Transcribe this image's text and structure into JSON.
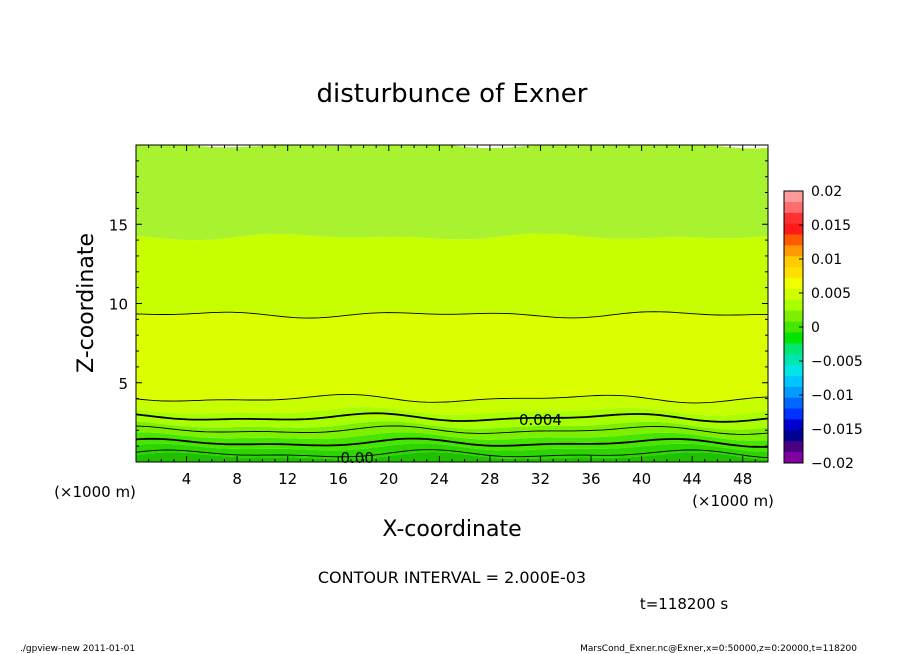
{
  "chart_data": {
    "type": "contour",
    "title": "disturbunce of Exner",
    "xlabel": "X-coordinate",
    "ylabel": "Z-coordinate",
    "x_unit_left": "(×1000 m)",
    "x_unit_right": "(×1000 m)",
    "xlim": [
      0,
      50
    ],
    "ylim": [
      0,
      20
    ],
    "x_ticks": [
      4,
      8,
      12,
      16,
      20,
      24,
      28,
      32,
      36,
      40,
      44,
      48
    ],
    "y_ticks": [
      5,
      10,
      15
    ],
    "contour_labels": [
      {
        "text": "0.004",
        "x": 32,
        "z": 2.7
      },
      {
        "text": "0.00",
        "x": 17.5,
        "z": 0.3
      }
    ],
    "colorbar": {
      "ticks": [
        "0.02",
        "0.015",
        "0.01",
        "0.005",
        "0",
        "−0.005",
        "−0.01",
        "−0.015",
        "−0.02"
      ],
      "range": [
        -0.02,
        0.02
      ],
      "colors": [
        "#ff9b9b",
        "#ff6e6e",
        "#ff3030",
        "#ff1a1a",
        "#ff5a00",
        "#ff9a00",
        "#ffcc00",
        "#ffe000",
        "#f0ff00",
        "#d0ff00",
        "#a8ff00",
        "#7cf000",
        "#46e600",
        "#00e400",
        "#00e870",
        "#00e6b0",
        "#00e6e6",
        "#00c6ff",
        "#009cff",
        "#0066ff",
        "#0033ff",
        "#0000d0",
        "#000090",
        "#4a0080",
        "#8000a0"
      ]
    },
    "bands": [
      {
        "from": 0,
        "to": 0.35,
        "color": "#1ec000"
      },
      {
        "from": 0.35,
        "to": 0.9,
        "color": "#2cd400"
      },
      {
        "from": 0.9,
        "to": 1.6,
        "color": "#46e600"
      },
      {
        "from": 1.6,
        "to": 2.3,
        "color": "#7cf000"
      },
      {
        "from": 2.3,
        "to": 3.2,
        "color": "#a8ff00"
      },
      {
        "from": 3.2,
        "to": 4.0,
        "color": "#c8ff00"
      },
      {
        "from": 4.0,
        "to": 9.3,
        "color": "#dcff00"
      },
      {
        "from": 9.3,
        "to": 14.2,
        "color": "#c8ff00"
      },
      {
        "from": 14.2,
        "to": 20,
        "color": "#a8f230"
      }
    ],
    "contour_lines": [
      0.5,
      1.2,
      2.0,
      2.8,
      4.0,
      9.3
    ],
    "contour_interval": "CONTOUR INTERVAL = 2.000E-03",
    "time_label": "t=118200 s"
  },
  "footer": {
    "left": "./gpview-new   2011-01-01",
    "right": "MarsCond_Exner.nc@Exner,x=0:50000,z=0:20000,t=118200"
  }
}
